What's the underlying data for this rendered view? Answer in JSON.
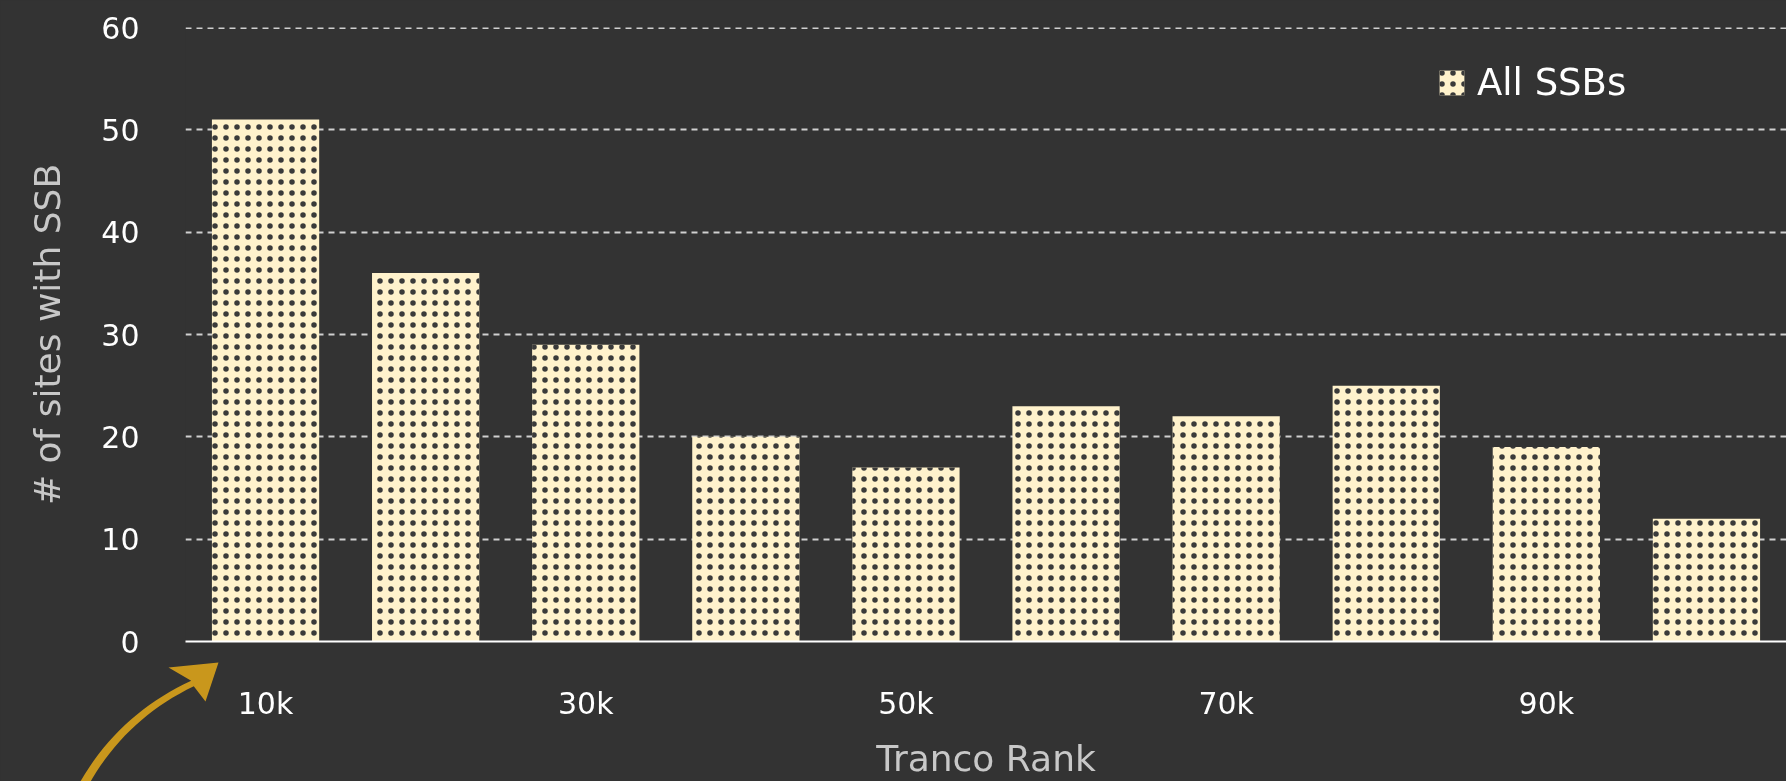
{
  "chart_data": {
    "type": "bar",
    "xlabel": "Tranco Rank",
    "ylabel": "# of sites with SSB",
    "categories": [
      "10k",
      null,
      "30k",
      null,
      "50k",
      null,
      "70k",
      null,
      "90k",
      null
    ],
    "series": [
      {
        "name": "All SSBs",
        "color": "#fff2cc",
        "values": [
          51,
          36,
          29,
          20,
          17,
          23,
          22,
          25,
          19,
          12
        ]
      }
    ],
    "ylim": [
      0,
      60
    ],
    "yticks": [
      0,
      10,
      20,
      30,
      40,
      50,
      60
    ],
    "grid": "y",
    "legend": "top right"
  }
}
